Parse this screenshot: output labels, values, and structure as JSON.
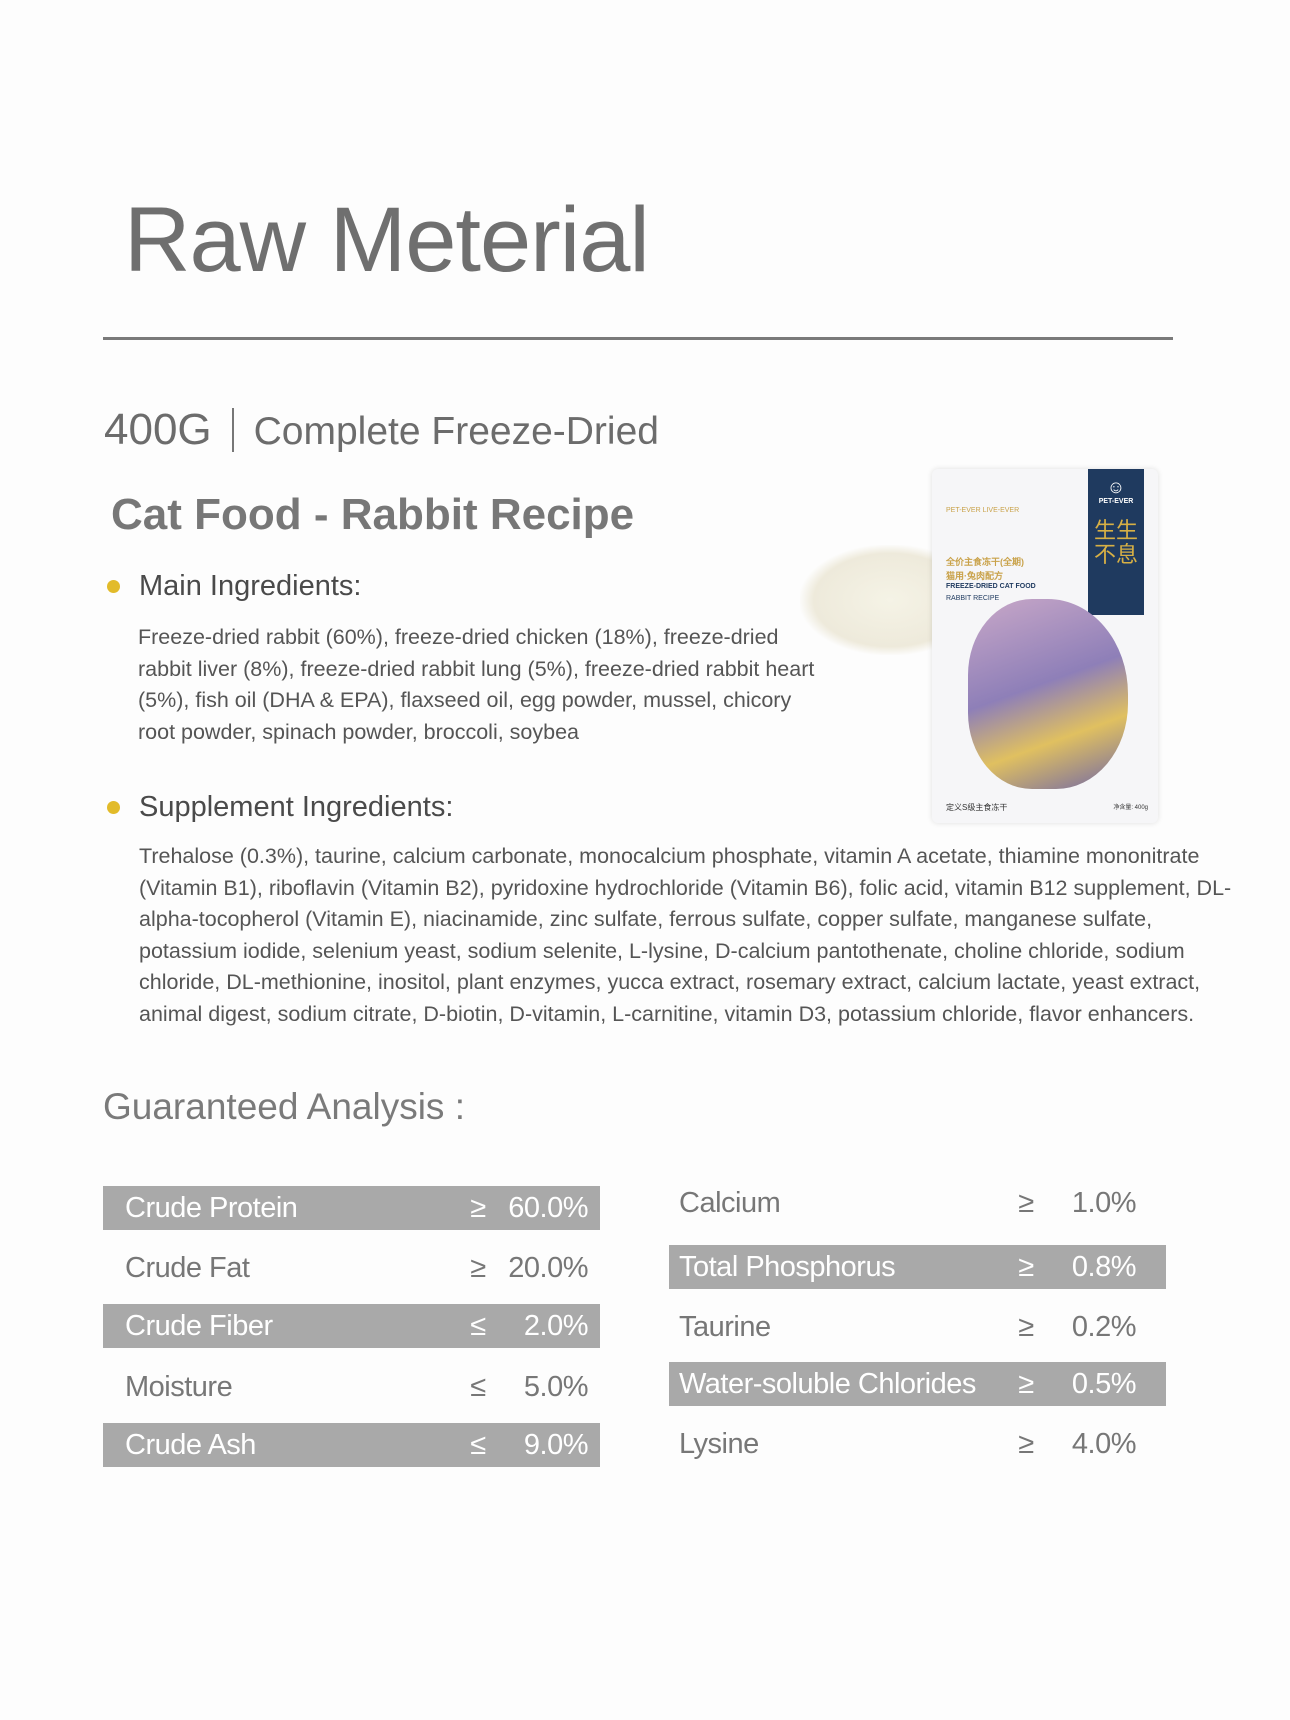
{
  "title": "Raw Meterial",
  "subtitle": {
    "weight": "400G",
    "name_line1": "Complete Freeze-Dried",
    "name_line2": "Cat Food - Rabbit Recipe"
  },
  "main": {
    "label": "Main Ingredients:",
    "text": "Freeze-dried rabbit (60%), freeze-dried chicken (18%), freeze-dried rabbit liver (8%), freeze-dried rabbit lung (5%), freeze-dried rabbit heart (5%), fish oil (DHA & EPA), flaxseed oil, egg powder, mussel, chicory root powder, spinach powder, broccoli, soybea"
  },
  "supplement": {
    "label": "Supplement Ingredients:",
    "text": "Trehalose (0.3%), taurine, calcium carbonate, monocalcium phosphate, vitamin A acetate, thiamine mononitrate (Vitamin B1), riboflavin (Vitamin B2), pyridoxine hydrochloride (Vitamin B6), folic acid, vitamin B12 supplement, DL-alpha-tocopherol (Vitamin E), niacinamide, zinc sulfate, ferrous sulfate, copper sulfate, manganese sulfate, potassium iodide, selenium yeast, sodium selenite, L-lysine, D-calcium pantothenate, choline chloride, sodium chloride, DL-methionine, inositol, plant enzymes, yucca extract, rosemary extract, calcium lactate, yeast extract, animal digest, sodium citrate, D-biotin, D-vitamin, L-carnitine, vitamin D3, potassium chloride, flavor enhancers."
  },
  "analysis": {
    "title": "Guaranteed Analysis :",
    "left": [
      {
        "name": "Crude Protein",
        "sign": "≥",
        "value": "60.0%"
      },
      {
        "name": "Crude Fat",
        "sign": "≥",
        "value": "20.0%"
      },
      {
        "name": "Crude Fiber",
        "sign": "≤",
        "value": "2.0%"
      },
      {
        "name": "Moisture",
        "sign": "≤",
        "value": "5.0%"
      },
      {
        "name": "Crude Ash",
        "sign": "≤",
        "value": "9.0%"
      }
    ],
    "right": [
      {
        "name": "Calcium",
        "sign": "≥",
        "value": "1.0%"
      },
      {
        "name": "Total Phosphorus",
        "sign": "≥",
        "value": "0.8%"
      },
      {
        "name": "Taurine",
        "sign": "≥",
        "value": "0.2%"
      },
      {
        "name": "Water-soluble Chlorides",
        "sign": "≥",
        "value": "0.5%"
      },
      {
        "name": "Lysine",
        "sign": "≥",
        "value": "4.0%"
      }
    ]
  },
  "package": {
    "brand": "PET-EVER",
    "slogan": "PET-EVER LIVE-EVER",
    "cn_title": "全价主食冻干(全期)",
    "cn_sub": "猫用·兔肉配方",
    "en_title": "FREEZE-DRIED CAT FOOD",
    "en_sub": "RABBIT RECIPE",
    "cn_big": "生生不息",
    "footer": "定义S级主食冻干",
    "net": "净含量: 400g"
  },
  "colors": {
    "bullet": "#e2bb2a",
    "highlight_bar": "#a9a9a9",
    "package_navy": "#1f3a5f"
  }
}
